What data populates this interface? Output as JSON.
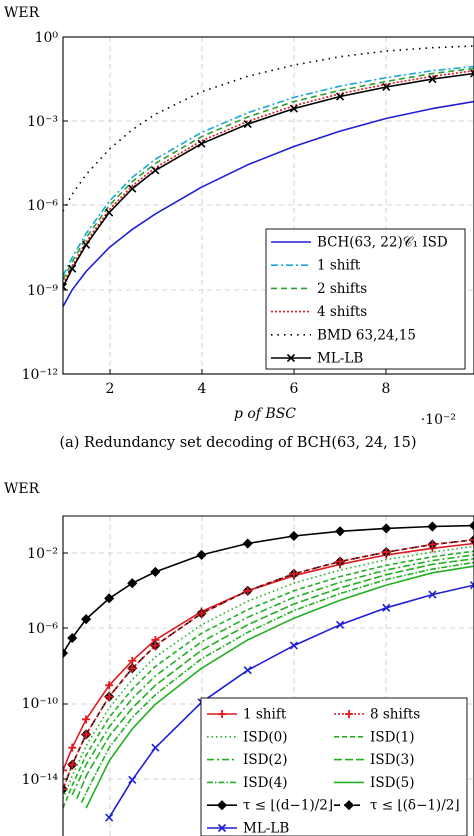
{
  "chart_data": [
    {
      "type": "line",
      "ylabel": "WER",
      "xlabel": "p of BSC",
      "x_scale_note": "·10⁻²",
      "caption": "(a) Redundancy set decoding of BCH(63, 24, 15)",
      "xlim": [
        1.0,
        9.9
      ],
      "ylim_log10": [
        -12,
        0
      ],
      "y_scale": "log",
      "grid": true,
      "legend_position": "bottom-right",
      "xticks": [
        2,
        4,
        6,
        8
      ],
      "ytick_labels": [
        "10⁰",
        "10⁻³",
        "10⁻⁶",
        "10⁻⁹",
        "10⁻¹²"
      ],
      "series": [
        {
          "name": "BCH(63, 22)𝒞₁ ISD",
          "color": "#1f1fd6",
          "dash": "",
          "marker": "none",
          "x": [
            1.0,
            1.2,
            1.5,
            2.0,
            2.5,
            3.0,
            4.0,
            5.0,
            6.0,
            7.0,
            8.0,
            9.0,
            9.9
          ],
          "log10_y": [
            -9.6,
            -9.0,
            -8.35,
            -7.5,
            -6.85,
            -6.3,
            -5.35,
            -4.55,
            -3.9,
            -3.35,
            -2.9,
            -2.55,
            -2.3
          ]
        },
        {
          "name": "1 shift",
          "color": "#17a7d4",
          "dash": "7 3 2 3",
          "marker": "none",
          "x": [
            1.0,
            1.2,
            1.5,
            2.0,
            2.5,
            3.0,
            4.0,
            5.0,
            6.0,
            7.0,
            8.0,
            9.0,
            9.9
          ],
          "log10_y": [
            -8.5,
            -7.85,
            -7.0,
            -5.85,
            -5.0,
            -4.35,
            -3.4,
            -2.7,
            -2.15,
            -1.75,
            -1.45,
            -1.2,
            -1.05
          ]
        },
        {
          "name": "2 shifts",
          "color": "#2e9e2e",
          "dash": "6 4",
          "marker": "none",
          "x": [
            1.0,
            1.2,
            1.5,
            2.0,
            2.5,
            3.0,
            4.0,
            5.0,
            6.0,
            7.0,
            8.0,
            9.0,
            9.9
          ],
          "log10_y": [
            -8.65,
            -8.0,
            -7.15,
            -6.0,
            -5.15,
            -4.5,
            -3.55,
            -2.85,
            -2.3,
            -1.9,
            -1.58,
            -1.3,
            -1.12
          ]
        },
        {
          "name": "4 shifts",
          "color": "#e0191f",
          "dash": "2 2",
          "marker": "none",
          "x": [
            1.0,
            1.2,
            1.5,
            2.0,
            2.5,
            3.0,
            4.0,
            5.0,
            6.0,
            7.0,
            8.0,
            9.0,
            9.9
          ],
          "log10_y": [
            -8.8,
            -8.15,
            -7.3,
            -6.15,
            -5.3,
            -4.65,
            -3.7,
            -3.0,
            -2.45,
            -2.02,
            -1.68,
            -1.4,
            -1.2
          ]
        },
        {
          "name": "BMD 63,24,15",
          "color": "#000000",
          "dash": "1.5 5",
          "marker": "none",
          "x": [
            1.0,
            1.2,
            1.5,
            2.0,
            2.5,
            3.0,
            4.0,
            5.0,
            6.0,
            7.0,
            8.0,
            9.0,
            9.9
          ],
          "log10_y": [
            -6.2,
            -5.6,
            -4.9,
            -4.0,
            -3.3,
            -2.75,
            -1.95,
            -1.4,
            -1.0,
            -0.7,
            -0.5,
            -0.38,
            -0.32
          ]
        },
        {
          "name": "ML-LB",
          "color": "#000000",
          "dash": "",
          "marker": "x",
          "x": [
            1.0,
            1.2,
            1.5,
            2.0,
            2.5,
            3.0,
            4.0,
            5.0,
            6.0,
            7.0,
            8.0,
            9.0,
            9.9
          ],
          "log10_y": [
            -8.9,
            -8.25,
            -7.4,
            -6.25,
            -5.4,
            -4.75,
            -3.8,
            -3.1,
            -2.55,
            -2.12,
            -1.78,
            -1.5,
            -1.3
          ]
        }
      ]
    },
    {
      "type": "line",
      "ylabel": "WER",
      "xlim": [
        1.0,
        9.9
      ],
      "ylim_log10": [
        -16,
        0
      ],
      "y_scale": "log",
      "grid": true,
      "legend_position": "bottom-right",
      "ytick_labels": [
        "10⁻²",
        "10⁻⁶",
        "10⁻¹⁰",
        "10⁻¹⁴"
      ],
      "series": [
        {
          "name": "τ ≤ ⌊(d−1)/2⌋",
          "color": "#000000",
          "dash": "",
          "marker": "diamond",
          "x": [
            1.0,
            1.2,
            1.5,
            2.0,
            2.5,
            3.0,
            4.0,
            5.0,
            6.0,
            7.0,
            8.0,
            9.0,
            9.9
          ],
          "log10_y": [
            -7.3,
            -6.5,
            -5.5,
            -4.4,
            -3.6,
            -3.0,
            -2.1,
            -1.5,
            -1.1,
            -0.85,
            -0.7,
            -0.6,
            -0.55
          ]
        },
        {
          "name": "1 shift",
          "color": "#e0191f",
          "dash": "",
          "marker": "plus",
          "x": [
            1.0,
            1.2,
            1.5,
            2.0,
            2.5,
            3.0,
            4.0,
            5.0,
            6.0,
            7.0,
            8.0,
            9.0,
            9.9
          ],
          "log10_y": [
            -13.5,
            -12.3,
            -10.8,
            -9.0,
            -7.7,
            -6.6,
            -5.1,
            -4.0,
            -3.2,
            -2.6,
            -2.1,
            -1.75,
            -1.5
          ]
        },
        {
          "name": "τ ≤ ⌊(δ−1)/2⌋",
          "color": "#000000",
          "dash": "6 4",
          "marker": "diamond",
          "x": [
            1.0,
            1.2,
            1.5,
            2.0,
            2.5,
            3.0,
            4.0,
            5.0,
            6.0,
            7.0,
            8.0,
            9.0,
            9.9
          ],
          "log10_y": [
            -14.5,
            -13.2,
            -11.6,
            -9.6,
            -8.1,
            -6.9,
            -5.2,
            -4.0,
            -3.1,
            -2.45,
            -1.95,
            -1.55,
            -1.3
          ]
        },
        {
          "name": "8 shifts",
          "color": "#e0191f",
          "dash": "2 2",
          "marker": "plus",
          "x": [
            1.0,
            1.2,
            1.5,
            2.0,
            2.5,
            3.0,
            4.0,
            5.0,
            6.0,
            7.0,
            8.0,
            9.0,
            9.9
          ],
          "log10_y": [
            -14.5,
            -13.2,
            -11.6,
            -9.6,
            -8.1,
            -6.9,
            -5.2,
            -4.0,
            -3.1,
            -2.45,
            -1.95,
            -1.55,
            -1.3
          ]
        },
        {
          "name": "ISD(0)",
          "color": "#22b022",
          "dash": "1.5 3",
          "marker": "none",
          "x": [
            1.0,
            1.2,
            1.5,
            2.0,
            2.5,
            3.0,
            4.0,
            5.0,
            6.0,
            7.0,
            8.0,
            9.0,
            9.9
          ],
          "log10_y": [
            -15.0,
            -13.8,
            -12.2,
            -10.2,
            -8.7,
            -7.5,
            -5.8,
            -4.55,
            -3.6,
            -2.9,
            -2.35,
            -1.95,
            -1.65
          ]
        },
        {
          "name": "ISD(1)",
          "color": "#22b022",
          "dash": "5 3",
          "marker": "none",
          "x": [
            1.0,
            1.2,
            1.5,
            2.0,
            2.5,
            3.0,
            4.0,
            5.0,
            6.0,
            7.0,
            8.0,
            9.0,
            9.9
          ],
          "log10_y": [
            -15.5,
            -14.3,
            -12.7,
            -10.7,
            -9.2,
            -8.0,
            -6.25,
            -5.0,
            -4.0,
            -3.25,
            -2.65,
            -2.2,
            -1.9
          ]
        },
        {
          "name": "ISD(2)",
          "color": "#22b022",
          "dash": "7 3 2 3",
          "marker": "none",
          "x": [
            1.2,
            1.5,
            2.0,
            2.5,
            3.0,
            4.0,
            5.0,
            6.0,
            7.0,
            8.0,
            9.0,
            9.9
          ],
          "log10_y": [
            -14.8,
            -13.2,
            -11.2,
            -9.7,
            -8.5,
            -6.7,
            -5.4,
            -4.35,
            -3.55,
            -2.9,
            -2.4,
            -2.1
          ]
        },
        {
          "name": "ISD(3)",
          "color": "#22b022",
          "dash": "8 3",
          "marker": "none",
          "x": [
            1.3,
            1.5,
            2.0,
            2.5,
            3.0,
            4.0,
            5.0,
            6.0,
            7.0,
            8.0,
            9.0,
            9.9
          ],
          "log10_y": [
            -15.0,
            -13.8,
            -11.7,
            -10.2,
            -9.0,
            -7.15,
            -5.8,
            -4.7,
            -3.85,
            -3.15,
            -2.6,
            -2.3
          ]
        },
        {
          "name": "ISD(4)",
          "color": "#22b022",
          "dash": "6 2 1.5 2",
          "marker": "none",
          "x": [
            1.4,
            1.6,
            2.0,
            2.5,
            3.0,
            4.0,
            5.0,
            6.0,
            7.0,
            8.0,
            9.0,
            9.9
          ],
          "log10_y": [
            -15.2,
            -14.2,
            -12.3,
            -10.7,
            -9.5,
            -7.6,
            -6.2,
            -5.05,
            -4.15,
            -3.4,
            -2.85,
            -2.5
          ]
        },
        {
          "name": "ISD(5)",
          "color": "#22b022",
          "dash": "",
          "marker": "none",
          "x": [
            1.5,
            1.7,
            2.0,
            2.5,
            3.0,
            4.0,
            5.0,
            6.0,
            7.0,
            8.0,
            9.0,
            9.9
          ],
          "log10_y": [
            -15.5,
            -14.5,
            -13.0,
            -11.3,
            -10.0,
            -8.1,
            -6.6,
            -5.45,
            -4.5,
            -3.7,
            -3.05,
            -2.7
          ]
        },
        {
          "name": "ML-LB",
          "color": "#1f1fd6",
          "dash": "",
          "marker": "x",
          "x": [
            2.0,
            2.5,
            3.0,
            4.0,
            5.0,
            6.0,
            7.0,
            8.0,
            9.0,
            9.9
          ],
          "log10_y": [
            -16.0,
            -14.0,
            -12.3,
            -9.9,
            -8.2,
            -6.9,
            -5.8,
            -4.9,
            -4.2,
            -3.7
          ]
        }
      ]
    }
  ]
}
